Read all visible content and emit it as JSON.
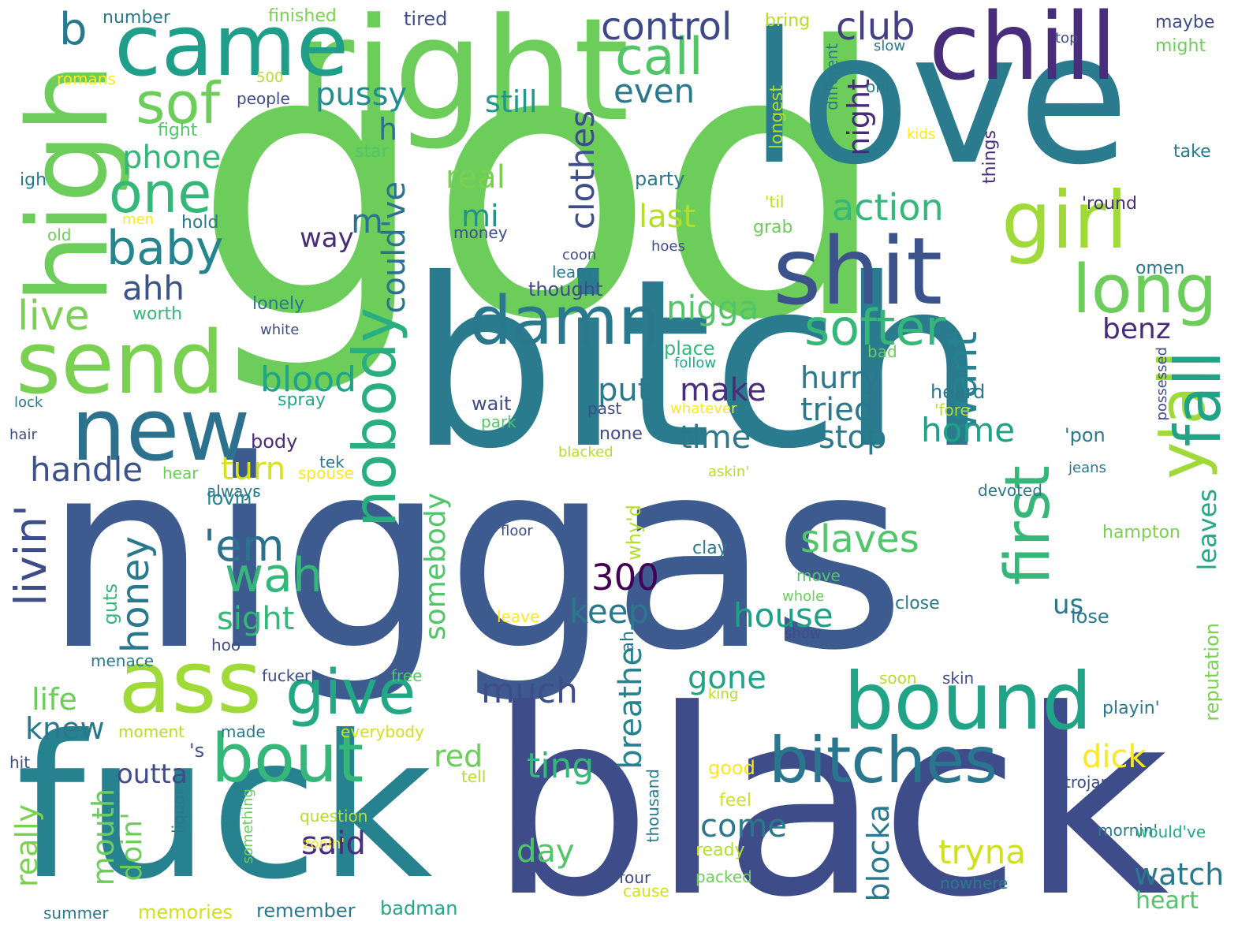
{
  "words": [
    {
      "text": "god",
      "color": "#6ccd5a"
    },
    {
      "text": "niggas",
      "color": "#3e5b8f"
    },
    {
      "text": "bitch",
      "color": "#2b7b8e"
    },
    {
      "text": "love",
      "color": "#2b7b8e"
    },
    {
      "text": "black",
      "color": "#3e4d8a"
    },
    {
      "text": "fuck",
      "color": "#26828e"
    },
    {
      "text": "right",
      "color": "#6ccd5a"
    },
    {
      "text": "chill",
      "color": "#472d7b"
    },
    {
      "text": "came",
      "color": "#1f9e89"
    },
    {
      "text": "high",
      "color": "#6ccd5a"
    },
    {
      "text": "shit",
      "color": "#3b528b"
    },
    {
      "text": "send",
      "color": "#7ad151"
    },
    {
      "text": "new",
      "color": "#2c718e"
    },
    {
      "text": "ass",
      "color": "#a0da39"
    },
    {
      "text": "bound",
      "color": "#20a386"
    },
    {
      "text": "girl",
      "color": "#a0da39"
    },
    {
      "text": "long",
      "color": "#6ccd5a"
    },
    {
      "text": "damn",
      "color": "#2a788e"
    },
    {
      "text": "softer",
      "color": "#35b779"
    },
    {
      "text": "bitches",
      "color": "#2a768e"
    },
    {
      "text": "bout",
      "color": "#35b779"
    },
    {
      "text": "give",
      "color": "#22a884"
    },
    {
      "text": "nobody",
      "color": "#29af7f"
    },
    {
      "text": "y'all",
      "color": "#a0da39"
    },
    {
      "text": "fall",
      "color": "#20a386"
    },
    {
      "text": "first",
      "color": "#35b779"
    },
    {
      "text": "one",
      "color": "#35b779"
    },
    {
      "text": "sof",
      "color": "#6ccd5a"
    },
    {
      "text": "call",
      "color": "#52c569"
    },
    {
      "text": "baby",
      "color": "#25858e"
    },
    {
      "text": "b",
      "color": "#2a788e"
    },
    {
      "text": "control",
      "color": "#3e4989"
    },
    {
      "text": "club",
      "color": "#433e85"
    },
    {
      "text": "live",
      "color": "#7ad151"
    },
    {
      "text": "livin'",
      "color": "#3e4c8a"
    },
    {
      "text": "wah",
      "color": "#35b779"
    },
    {
      "text": "'em",
      "color": "#2c718e"
    },
    {
      "text": "slaves",
      "color": "#52c569"
    },
    {
      "text": "honey",
      "color": "#2a788e"
    },
    {
      "text": "nigga",
      "color": "#52c569"
    },
    {
      "text": "want",
      "color": "#26828e"
    },
    {
      "text": "pussy",
      "color": "#228d8d"
    },
    {
      "text": "even",
      "color": "#2a788e"
    },
    {
      "text": "phone",
      "color": "#35b779"
    },
    {
      "text": "night",
      "color": "#472c7a"
    },
    {
      "text": "action",
      "color": "#35b779"
    },
    {
      "text": "clothes",
      "color": "#3e4c8a"
    },
    {
      "text": "could've",
      "color": "#2c718e"
    },
    {
      "text": "real",
      "color": "#7ad151"
    },
    {
      "text": "mi",
      "color": "#21918c"
    },
    {
      "text": "last",
      "color": "#b5de2b"
    },
    {
      "text": "still",
      "color": "#1f988b"
    },
    {
      "text": "ahh",
      "color": "#3b528b"
    },
    {
      "text": "m",
      "color": "#2c718e"
    },
    {
      "text": "h",
      "color": "#2c718e"
    },
    {
      "text": "blood",
      "color": "#20a386"
    },
    {
      "text": "put",
      "color": "#2a788e"
    },
    {
      "text": "make",
      "color": "#472d7b"
    },
    {
      "text": "hurry",
      "color": "#2a788e"
    },
    {
      "text": "tried",
      "color": "#2a788e"
    },
    {
      "text": "benz",
      "color": "#472c7a"
    },
    {
      "text": "home",
      "color": "#1fa187"
    },
    {
      "text": "stop",
      "color": "#2a788e"
    },
    {
      "text": "time",
      "color": "#2a788e"
    },
    {
      "text": "handle",
      "color": "#3b528b"
    },
    {
      "text": "turn",
      "color": "#d8e219"
    },
    {
      "text": "300",
      "color": "#440154"
    },
    {
      "text": "keep",
      "color": "#2a788e"
    },
    {
      "text": "sight",
      "color": "#35b779"
    },
    {
      "text": "house",
      "color": "#1fa187"
    },
    {
      "text": "somebody",
      "color": "#52c569"
    },
    {
      "text": "much",
      "color": "#3e4c8a"
    },
    {
      "text": "gone",
      "color": "#20a386"
    },
    {
      "text": "life",
      "color": "#6ccd5a"
    },
    {
      "text": "knew",
      "color": "#2a788e"
    },
    {
      "text": "outta",
      "color": "#3e4c8a"
    },
    {
      "text": "mouth",
      "color": "#6ccd5a"
    },
    {
      "text": "doin'",
      "color": "#6ccd5a"
    },
    {
      "text": "really",
      "color": "#7ad151"
    },
    {
      "text": "said",
      "color": "#472d7b"
    },
    {
      "text": "day",
      "color": "#52c569"
    },
    {
      "text": "ting",
      "color": "#35b779"
    },
    {
      "text": "red",
      "color": "#6ccd5a"
    },
    {
      "text": "breathe",
      "color": "#26828e"
    },
    {
      "text": "blocka",
      "color": "#2a788e"
    },
    {
      "text": "tryna",
      "color": "#d0e11c"
    },
    {
      "text": "come",
      "color": "#2a788e"
    },
    {
      "text": "dick",
      "color": "#fde725"
    },
    {
      "text": "watch",
      "color": "#2a788e"
    },
    {
      "text": "heart",
      "color": "#52c569"
    },
    {
      "text": "leaves",
      "color": "#22a884"
    },
    {
      "text": "us",
      "color": "#2a788e"
    },
    {
      "text": "reputation",
      "color": "#7ad151"
    },
    {
      "text": "way",
      "color": "#472c7a"
    },
    {
      "text": "'s",
      "color": "#3e4c8a"
    },
    {
      "text": "lovin'",
      "color": "#25858e"
    },
    {
      "text": "guts",
      "color": "#35b779"
    },
    {
      "text": "why'd",
      "color": "#b5de2b"
    },
    {
      "text": "ah",
      "color": "#2a788e"
    },
    {
      "text": "number",
      "color": "#2a788e"
    },
    {
      "text": "finished",
      "color": "#7ad151"
    },
    {
      "text": "tired",
      "color": "#3e4c8a"
    },
    {
      "text": "bring",
      "color": "#b5de2b"
    },
    {
      "text": "romans",
      "color": "#fde725"
    },
    {
      "text": "500",
      "color": "#b5de2b"
    },
    {
      "text": "people",
      "color": "#3e4c8a"
    },
    {
      "text": "fight",
      "color": "#52c569"
    },
    {
      "text": "star",
      "color": "#52c569"
    },
    {
      "text": "igh",
      "color": "#2a788e"
    },
    {
      "text": "men",
      "color": "#fde725"
    },
    {
      "text": "hold",
      "color": "#2a788e"
    },
    {
      "text": "old",
      "color": "#6ccd5a"
    },
    {
      "text": "money",
      "color": "#3e4c8a"
    },
    {
      "text": "lonely",
      "color": "#2a788e"
    },
    {
      "text": "worth",
      "color": "#35b779"
    },
    {
      "text": "white",
      "color": "#3e4c8a"
    },
    {
      "text": "lock",
      "color": "#2a788e"
    },
    {
      "text": "hair",
      "color": "#3e4c8a"
    },
    {
      "text": "spray",
      "color": "#22a884"
    },
    {
      "text": "body",
      "color": "#472c7a"
    },
    {
      "text": "tek",
      "color": "#2a788e"
    },
    {
      "text": "hear",
      "color": "#6ccd5a"
    },
    {
      "text": "spouse",
      "color": "#fde725"
    },
    {
      "text": "always",
      "color": "#2a788e"
    },
    {
      "text": "menace",
      "color": "#2a788e"
    },
    {
      "text": "hoo",
      "color": "#3e4c8a"
    },
    {
      "text": "fucker",
      "color": "#3e4c8a"
    },
    {
      "text": "free",
      "color": "#52c569"
    },
    {
      "text": "moment",
      "color": "#b5de2b"
    },
    {
      "text": "made",
      "color": "#2a788e"
    },
    {
      "text": "everybody",
      "color": "#d0e11c"
    },
    {
      "text": "hit",
      "color": "#3e4c8a"
    },
    {
      "text": "tell",
      "color": "#b5de2b"
    },
    {
      "text": "question",
      "color": "#b5de2b"
    },
    {
      "text": "liquor",
      "color": "#2a788e"
    },
    {
      "text": "something",
      "color": "#6ccd5a"
    },
    {
      "text": "zonin'",
      "color": "#fde725"
    },
    {
      "text": "four",
      "color": "#3e4c8a"
    },
    {
      "text": "cause",
      "color": "#d0e11c"
    },
    {
      "text": "summer",
      "color": "#2a788e"
    },
    {
      "text": "memories",
      "color": "#d0e11c"
    },
    {
      "text": "remember",
      "color": "#2a788e"
    },
    {
      "text": "badman",
      "color": "#22a884"
    },
    {
      "text": "slow",
      "color": "#2a788e"
    },
    {
      "text": "ohh",
      "color": "#2a788e"
    },
    {
      "text": "different",
      "color": "#2a788e"
    },
    {
      "text": "longest",
      "color": "#b5de2b"
    },
    {
      "text": "kids",
      "color": "#fde725"
    },
    {
      "text": "things",
      "color": "#472c7a"
    },
    {
      "text": "party",
      "color": "#2a788e"
    },
    {
      "text": "'til",
      "color": "#b5de2b"
    },
    {
      "text": "grab",
      "color": "#6ccd5a"
    },
    {
      "text": "coon",
      "color": "#3e4c8a"
    },
    {
      "text": "hoes",
      "color": "#3e4c8a"
    },
    {
      "text": "learn",
      "color": "#2a788e"
    },
    {
      "text": "thought",
      "color": "#3e4c8a"
    },
    {
      "text": "place",
      "color": "#35b779"
    },
    {
      "text": "follow",
      "color": "#22a884"
    },
    {
      "text": "bad",
      "color": "#6ccd5a"
    },
    {
      "text": "wait",
      "color": "#3e4c8a"
    },
    {
      "text": "past",
      "color": "#3e4c8a"
    },
    {
      "text": "whatever",
      "color": "#fde725"
    },
    {
      "text": "'fore",
      "color": "#b5de2b"
    },
    {
      "text": "heard",
      "color": "#2a788e"
    },
    {
      "text": "park",
      "color": "#52c569"
    },
    {
      "text": "none",
      "color": "#3e4c8a"
    },
    {
      "text": "blacked",
      "color": "#b5de2b"
    },
    {
      "text": "'pon",
      "color": "#2a788e"
    },
    {
      "text": "askin'",
      "color": "#b5de2b"
    },
    {
      "text": "devoted",
      "color": "#2a788e"
    },
    {
      "text": "floor",
      "color": "#3e4c8a"
    },
    {
      "text": "hampton",
      "color": "#7ad151"
    },
    {
      "text": "clay",
      "color": "#2a788e"
    },
    {
      "text": "move",
      "color": "#52c569"
    },
    {
      "text": "whole",
      "color": "#6ccd5a"
    },
    {
      "text": "close",
      "color": "#2a788e"
    },
    {
      "text": "lose",
      "color": "#2a788e"
    },
    {
      "text": "show",
      "color": "#3e4c8a"
    },
    {
      "text": "leave",
      "color": "#fde725"
    },
    {
      "text": "soon",
      "color": "#b5de2b"
    },
    {
      "text": "skin",
      "color": "#3e4c8a"
    },
    {
      "text": "king",
      "color": "#b5de2b"
    },
    {
      "text": "playin'",
      "color": "#2a788e"
    },
    {
      "text": "good",
      "color": "#fde725"
    },
    {
      "text": "thousand",
      "color": "#2a788e"
    },
    {
      "text": "feel",
      "color": "#d0e11c"
    },
    {
      "text": "trojans",
      "color": "#3e4c8a"
    },
    {
      "text": "mornin'",
      "color": "#2a788e"
    },
    {
      "text": "would've",
      "color": "#22a884"
    },
    {
      "text": "ready",
      "color": "#b5de2b"
    },
    {
      "text": "packed",
      "color": "#6ccd5a"
    },
    {
      "text": "nowhere",
      "color": "#2a788e"
    },
    {
      "text": "possessed",
      "color": "#3e4c8a"
    },
    {
      "text": "jeans",
      "color": "#2a788e"
    },
    {
      "text": "omen",
      "color": "#2a788e"
    },
    {
      "text": "'round",
      "color": "#472c7a"
    },
    {
      "text": "take",
      "color": "#2a788e"
    },
    {
      "text": "maybe",
      "color": "#3e4c8a"
    },
    {
      "text": "might",
      "color": "#6ccd5a"
    },
    {
      "text": "top",
      "color": "#3e4c8a"
    }
  ]
}
